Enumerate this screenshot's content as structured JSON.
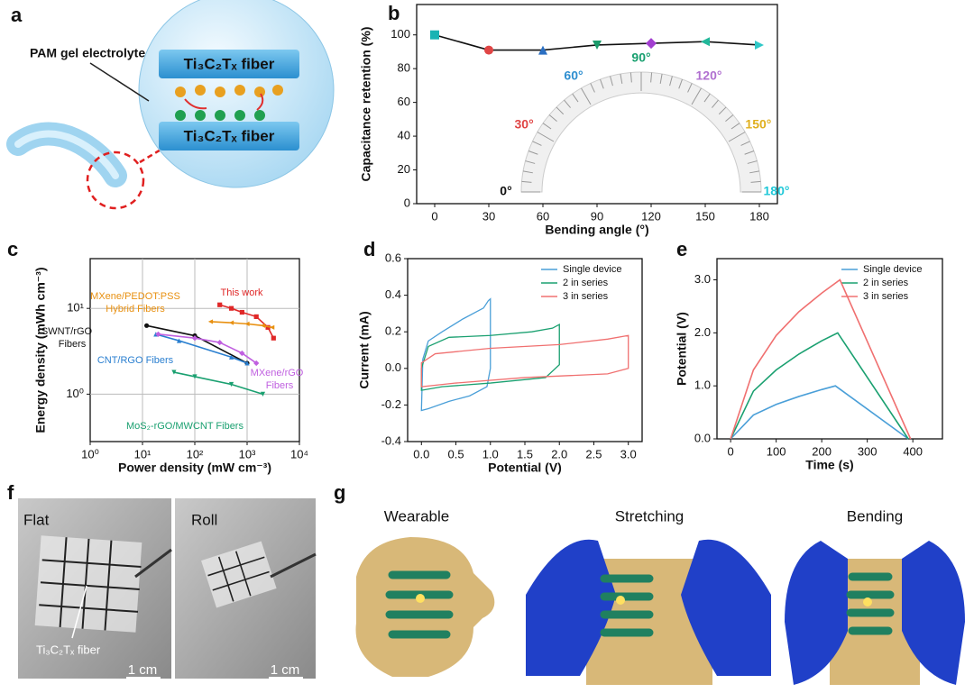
{
  "panel_a": {
    "label": "a",
    "electrolyte": "PAM gel electrolyte",
    "fiber_top": "Ti₃C₂Tₓ fiber",
    "fiber_bottom": "Ti₃C₂Tₓ fiber"
  },
  "panel_f": {
    "label": "f",
    "left": "Flat",
    "right": "Roll",
    "fiber": "Ti₃C₂Tₓ fiber",
    "scale_left": "1 cm",
    "scale_right": "1 cm"
  },
  "panel_g": {
    "label": "g",
    "titles": [
      "Wearable",
      "Stretching",
      "Bending"
    ]
  },
  "chart_data": [
    {
      "type": "line",
      "label": "b",
      "xlabel": "Bending angle (°)",
      "ylabel": "Capacitance retention (%)",
      "x": [
        0,
        30,
        60,
        90,
        120,
        150,
        180
      ],
      "series": [
        {
          "color": "#111111",
          "values": [
            100,
            91,
            91,
            94,
            95,
            96,
            94
          ]
        }
      ],
      "markers": [
        "square",
        "circle",
        "triangle-up",
        "triangle-down",
        "diamond",
        "triangle-left",
        "triangle-right"
      ],
      "marker_colors": [
        "#19b3b3",
        "#e04545",
        "#2a6fc2",
        "#1a9a6a",
        "#a23fd0",
        "#22b89a",
        "#30c8c8"
      ],
      "xlim": [
        -10,
        190
      ],
      "ylim": [
        0,
        118
      ],
      "xticks": [
        0,
        30,
        60,
        90,
        120,
        150,
        180
      ],
      "yticks": [
        0,
        20,
        40,
        60,
        80,
        100
      ],
      "annotations": [
        {
          "text": "0°",
          "color": "#111111"
        },
        {
          "text": "30°",
          "color": "#e04545"
        },
        {
          "text": "60°",
          "color": "#2f8fd0"
        },
        {
          "text": "90°",
          "color": "#19a070"
        },
        {
          "text": "120°",
          "color": "#b070d0"
        },
        {
          "text": "150°",
          "color": "#e0b020"
        },
        {
          "text": "180°",
          "color": "#20c8d8"
        }
      ]
    },
    {
      "type": "line",
      "label": "c",
      "xlabel": "Power density (mW cm⁻³)",
      "ylabel": "Energy density (mWh cm⁻³)",
      "xscale": "log",
      "yscale": "log",
      "grid": true,
      "series": [
        {
          "color": "#e02828",
          "marker": "square",
          "x": [
            300,
            500,
            800,
            1500,
            2500,
            3200
          ],
          "values": [
            11,
            10,
            9,
            8,
            6,
            4.5
          ]
        },
        {
          "color": "#e89010",
          "marker": "triangle-left",
          "x": [
            200,
            500,
            1000,
            2000,
            3000
          ],
          "values": [
            7,
            6.8,
            6.6,
            6.3,
            6
          ]
        },
        {
          "color": "#111111",
          "marker": "circle",
          "x": [
            12,
            100,
            1000
          ],
          "values": [
            6.3,
            4.8,
            2.3
          ]
        },
        {
          "color": "#2a7fd0",
          "marker": "triangle-up",
          "x": [
            18,
            50,
            500,
            1000
          ],
          "values": [
            5,
            4.2,
            2.7,
            2.3
          ]
        },
        {
          "color": "#c060e0",
          "marker": "diamond",
          "x": [
            20,
            100,
            300,
            800,
            1500
          ],
          "values": [
            5,
            4.5,
            4,
            3,
            2.3
          ]
        },
        {
          "color": "#1aa070",
          "marker": "triangle-down",
          "x": [
            40,
            100,
            500,
            2000
          ],
          "values": [
            1.8,
            1.6,
            1.3,
            1.0
          ]
        }
      ],
      "xlim": [
        1,
        10000
      ],
      "ylim": [
        0.28,
        38
      ],
      "xticks": [
        {
          "value": 1,
          "label": "10⁰"
        },
        {
          "value": 10,
          "label": "10¹"
        },
        {
          "value": 100,
          "label": "10²"
        },
        {
          "value": 1000,
          "label": "10³"
        },
        {
          "value": 10000,
          "label": "10⁴"
        }
      ],
      "yticks": [
        {
          "value": 1,
          "label": "10⁰"
        },
        {
          "value": 10,
          "label": "10¹"
        }
      ],
      "annotations": [
        {
          "text": "This work",
          "color": "#e02828"
        },
        {
          "text": "MXene/PEDOT:PSS",
          "color": "#e89010"
        },
        {
          "text": "Hybrid Fibers",
          "color": "#e89010"
        },
        {
          "text": "SWNT/rGO",
          "color": "#111111"
        },
        {
          "text": "Fibers",
          "color": "#111111"
        },
        {
          "text": "CNT/RGO Fibers",
          "color": "#2a7fd0"
        },
        {
          "text": "MXene/rGO",
          "color": "#c060e0"
        },
        {
          "text": "Fibers",
          "color": "#c060e0"
        },
        {
          "text": "MoS₂-rGO/MWCNT  Fibers",
          "color": "#1aa070"
        }
      ]
    },
    {
      "type": "line",
      "label": "d",
      "xlabel": "Potential (V)",
      "ylabel": "Current (mA)",
      "closed": true,
      "legend": "upper right",
      "series": [
        {
          "name": "Single device",
          "color": "#4a9fd8",
          "x": [
            0,
            0.02,
            0.1,
            0.3,
            0.6,
            0.9,
            0.97,
            1.0,
            1.0,
            0.95,
            0.7,
            0.4,
            0.1,
            0.0
          ],
          "values": [
            -0.23,
            0.05,
            0.15,
            0.2,
            0.27,
            0.33,
            0.37,
            0.38,
            0.0,
            -0.1,
            -0.15,
            -0.18,
            -0.22,
            -0.23
          ]
        },
        {
          "name": "2 in series",
          "color": "#1aa070",
          "x": [
            0,
            0.1,
            0.4,
            1.0,
            1.6,
            1.9,
            2.0,
            2.0,
            1.8,
            1.0,
            0.3,
            0
          ],
          "values": [
            0.0,
            0.12,
            0.17,
            0.18,
            0.2,
            0.22,
            0.24,
            0.02,
            -0.05,
            -0.08,
            -0.1,
            -0.12
          ]
        },
        {
          "name": "3 in series",
          "color": "#f07070",
          "x": [
            0,
            0.2,
            1.0,
            2.0,
            2.7,
            3.0,
            3.0,
            2.7,
            1.5,
            0.5,
            0
          ],
          "values": [
            0.03,
            0.08,
            0.11,
            0.13,
            0.16,
            0.18,
            0.0,
            -0.03,
            -0.05,
            -0.08,
            -0.1
          ]
        }
      ],
      "xlim": [
        -0.2,
        3.2
      ],
      "ylim": [
        -0.4,
        0.6
      ],
      "xticks": [
        {
          "value": 0,
          "label": "0.0"
        },
        0.5,
        {
          "value": 1,
          "label": "1.0"
        },
        1.5,
        {
          "value": 2,
          "label": "2.0"
        },
        2.5,
        {
          "value": 3,
          "label": "3.0"
        }
      ],
      "yticks": [
        -0.4,
        -0.2,
        {
          "value": 0,
          "label": "0.0"
        },
        0.2,
        0.4,
        0.6
      ]
    },
    {
      "type": "line",
      "label": "e",
      "xlabel": "Time (s)",
      "ylabel": "Potential (V)",
      "legend": "upper right",
      "series": [
        {
          "name": "Single device",
          "color": "#4a9fd8",
          "x": [
            0,
            50,
            100,
            150,
            200,
            230,
            390
          ],
          "values": [
            0,
            0.45,
            0.65,
            0.8,
            0.93,
            1.0,
            0
          ]
        },
        {
          "name": "2 in series",
          "color": "#1aa070",
          "x": [
            0,
            50,
            100,
            150,
            200,
            235,
            390
          ],
          "values": [
            0,
            0.9,
            1.3,
            1.6,
            1.85,
            2.0,
            0
          ]
        },
        {
          "name": "3 in series",
          "color": "#f07070",
          "x": [
            0,
            50,
            100,
            150,
            200,
            240,
            395
          ],
          "values": [
            0,
            1.3,
            1.95,
            2.4,
            2.75,
            3.0,
            0
          ]
        }
      ],
      "xlim": [
        -30,
        465
      ],
      "ylim": [
        0,
        3.4
      ],
      "xticks": [
        0,
        100,
        200,
        300,
        400
      ],
      "yticks": [
        {
          "value": 0,
          "label": "0.0"
        },
        {
          "value": 1,
          "label": "1.0"
        },
        {
          "value": 2,
          "label": "2.0"
        },
        {
          "value": 3,
          "label": "3.0"
        }
      ]
    }
  ]
}
